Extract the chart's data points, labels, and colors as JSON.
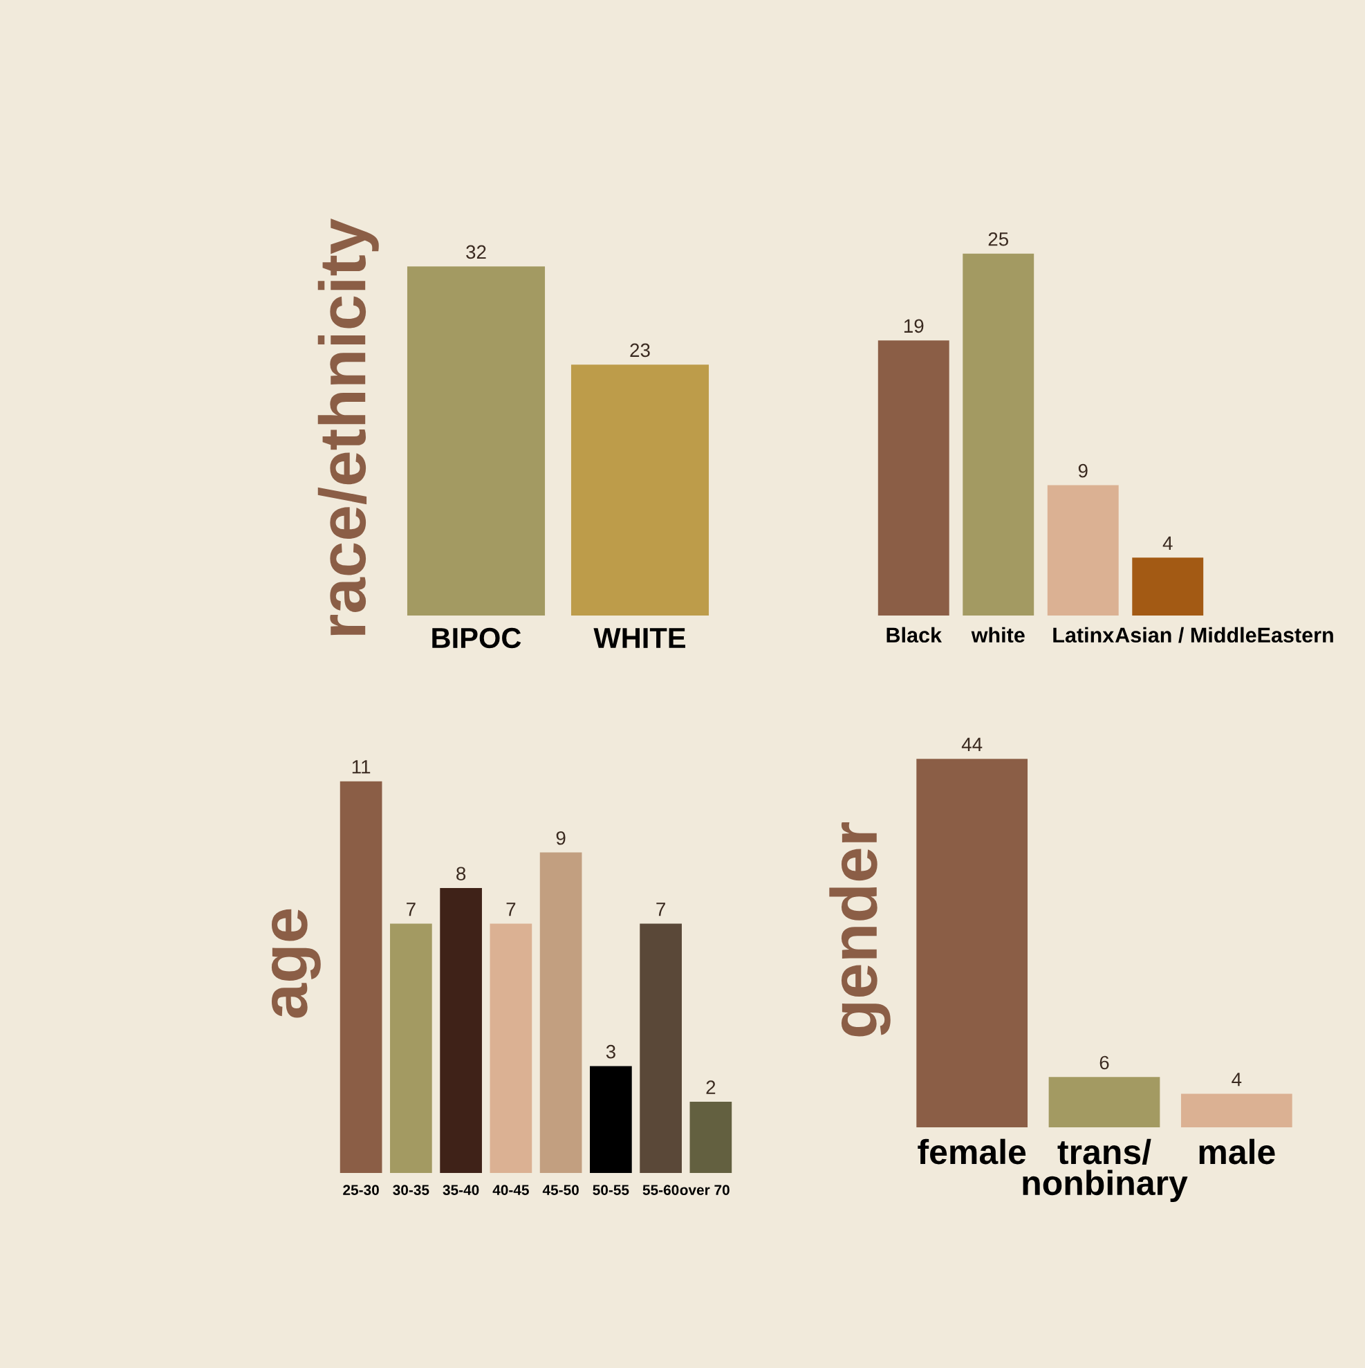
{
  "chart_data": [
    {
      "type": "bar",
      "ylabel": "race/ethnicity",
      "categories": [
        "BIPOC",
        "WHITE"
      ],
      "values": [
        32,
        23
      ],
      "colors": [
        "#a39a62",
        "#bd9c4a"
      ],
      "data_labels": true,
      "grid": false,
      "legend": false
    },
    {
      "type": "bar",
      "categories": [
        "Black",
        "white",
        "Latinx",
        "Asian / MiddleEastern"
      ],
      "values": [
        19,
        25,
        9,
        4
      ],
      "colors": [
        "#8b5e46",
        "#a39a62",
        "#dbb193",
        "#a35a14"
      ],
      "data_labels": true,
      "grid": false,
      "legend": false
    },
    {
      "type": "bar",
      "ylabel": "age",
      "categories": [
        "25-30",
        "30-35",
        "35-40",
        "40-45",
        "45-50",
        "50-55",
        "55-60",
        "over 70"
      ],
      "values": [
        11,
        7,
        8,
        7,
        9,
        3,
        7,
        2
      ],
      "colors": [
        "#8b5e46",
        "#a39a62",
        "#3f2218",
        "#dbb193",
        "#c29f80",
        "#000000",
        "#5a4838",
        "#636040"
      ],
      "data_labels": true,
      "grid": false,
      "legend": false
    },
    {
      "type": "bar",
      "ylabel": "gender",
      "categories": [
        "female",
        "trans/\nnonbinary",
        "male"
      ],
      "values": [
        44,
        6,
        4
      ],
      "colors": [
        "#8b5e46",
        "#a39a62",
        "#dbb193"
      ],
      "data_labels": true,
      "grid": false,
      "legend": false
    }
  ]
}
